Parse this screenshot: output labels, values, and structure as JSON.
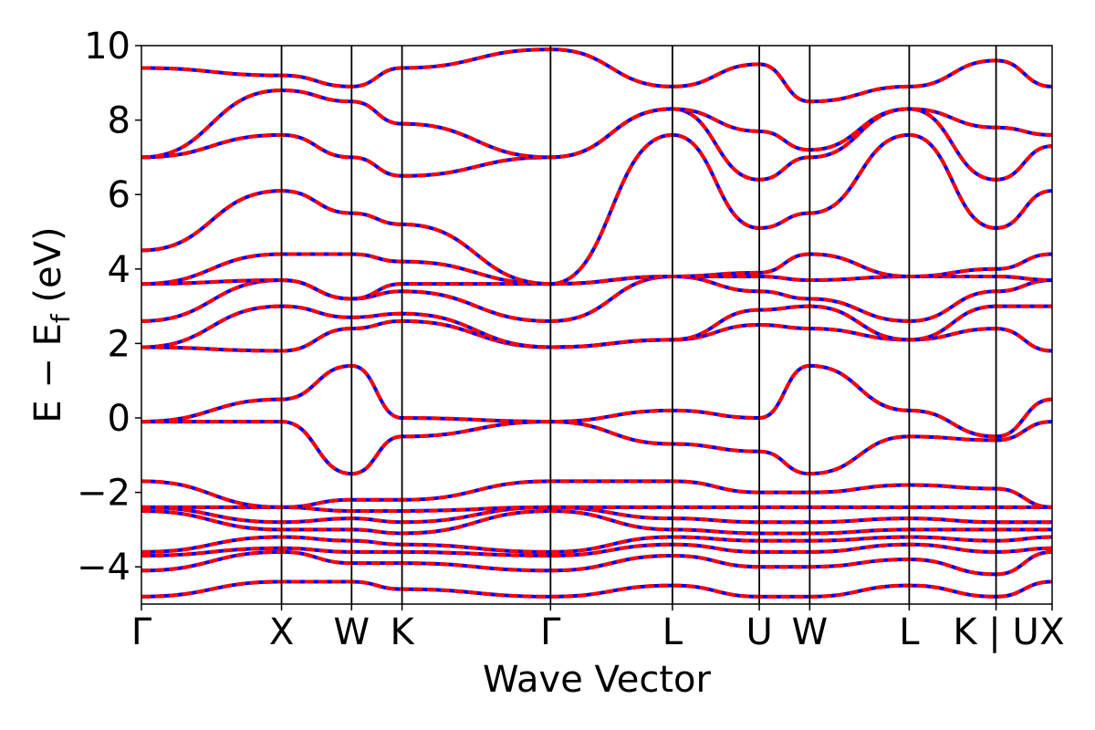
{
  "chart_data": {
    "type": "line",
    "title": "",
    "xlabel": "Wave Vector",
    "ylabel": "E − E_f (eV)",
    "ylabel_main": "E − E",
    "ylabel_sub": "f",
    "ylabel_unit": " (eV)",
    "ylim": [
      -5,
      10
    ],
    "yticks": [
      -4,
      -2,
      0,
      2,
      4,
      6,
      8,
      10
    ],
    "ytick_labels": [
      "−4",
      "−2",
      "0",
      "2",
      "4",
      "6",
      "8",
      "10"
    ],
    "xlim": [
      0,
      6.5
    ],
    "grid": false,
    "legend": "none",
    "high_symmetry_points": [
      {
        "label": "Γ",
        "x": 0.0
      },
      {
        "label": "X",
        "x": 1.0
      },
      {
        "label": "W",
        "x": 1.5
      },
      {
        "label": "K",
        "x": 1.86
      },
      {
        "label": "Γ",
        "x": 2.92
      },
      {
        "label": "L",
        "x": 3.79
      },
      {
        "label": "U",
        "x": 4.41
      },
      {
        "label": "W",
        "x": 4.77
      },
      {
        "label": "L",
        "x": 5.48
      },
      {
        "label": "K | U",
        "x": 6.1
      },
      {
        "label": "X",
        "x": 6.5
      }
    ],
    "band_colors": {
      "dft": "#0000ff",
      "interpolated": "#ff0000"
    },
    "series": [
      {
        "values": [
          [
            0,
            -4.8
          ],
          [
            1,
            -4.4
          ],
          [
            1.5,
            -4.4
          ],
          [
            1.86,
            -4.6
          ],
          [
            2.92,
            -4.8
          ],
          [
            3.79,
            -4.5
          ],
          [
            4.41,
            -4.8
          ],
          [
            4.77,
            -4.8
          ],
          [
            5.48,
            -4.5
          ],
          [
            6.1,
            -4.8
          ],
          [
            6.5,
            -4.4
          ]
        ]
      },
      {
        "values": [
          [
            0,
            -4.1
          ],
          [
            1,
            -3.6
          ],
          [
            1.5,
            -3.9
          ],
          [
            1.86,
            -3.9
          ],
          [
            2.92,
            -4.1
          ],
          [
            3.79,
            -3.7
          ],
          [
            4.41,
            -4.0
          ],
          [
            4.77,
            -4.0
          ],
          [
            5.48,
            -3.8
          ],
          [
            6.1,
            -4.2
          ],
          [
            6.5,
            -3.6
          ]
        ]
      },
      {
        "values": [
          [
            0,
            -3.7
          ],
          [
            1,
            -3.5
          ],
          [
            1.5,
            -3.6
          ],
          [
            1.86,
            -3.6
          ],
          [
            2.92,
            -3.7
          ],
          [
            3.79,
            -3.4
          ],
          [
            4.41,
            -3.6
          ],
          [
            4.77,
            -3.6
          ],
          [
            5.48,
            -3.4
          ],
          [
            6.1,
            -3.6
          ],
          [
            6.5,
            -3.5
          ]
        ]
      },
      {
        "values": [
          [
            0,
            -3.6
          ],
          [
            1,
            -3.2
          ],
          [
            1.5,
            -3.3
          ],
          [
            1.86,
            -3.4
          ],
          [
            2.92,
            -3.6
          ],
          [
            3.79,
            -3.2
          ],
          [
            4.41,
            -3.3
          ],
          [
            4.77,
            -3.3
          ],
          [
            5.48,
            -3.2
          ],
          [
            6.1,
            -3.3
          ],
          [
            6.5,
            -3.2
          ]
        ]
      },
      {
        "values": [
          [
            0,
            -2.5
          ],
          [
            1,
            -3.0
          ],
          [
            1.5,
            -3.0
          ],
          [
            1.86,
            -3.1
          ],
          [
            2.92,
            -2.5
          ],
          [
            3.79,
            -3.0
          ],
          [
            4.41,
            -3.1
          ],
          [
            4.77,
            -3.1
          ],
          [
            5.48,
            -3.0
          ],
          [
            6.1,
            -3.0
          ],
          [
            6.5,
            -3.0
          ]
        ]
      },
      {
        "values": [
          [
            0,
            -2.4
          ],
          [
            1,
            -2.8
          ],
          [
            1.5,
            -2.7
          ],
          [
            1.86,
            -2.8
          ],
          [
            2.92,
            -2.4
          ],
          [
            3.79,
            -2.7
          ],
          [
            4.41,
            -2.8
          ],
          [
            4.77,
            -2.8
          ],
          [
            5.48,
            -2.7
          ],
          [
            6.1,
            -2.8
          ],
          [
            6.5,
            -2.8
          ]
        ]
      },
      {
        "values": [
          [
            0,
            -2.4
          ],
          [
            1,
            -2.4
          ],
          [
            1.5,
            -2.5
          ],
          [
            1.86,
            -2.5
          ],
          [
            2.92,
            -2.4
          ],
          [
            3.79,
            -2.4
          ],
          [
            4.41,
            -2.4
          ],
          [
            4.77,
            -2.4
          ],
          [
            5.48,
            -2.4
          ],
          [
            6.1,
            -2.4
          ],
          [
            6.5,
            -2.4
          ]
        ]
      },
      {
        "values": [
          [
            0,
            -1.7
          ],
          [
            1,
            -2.4
          ],
          [
            1.5,
            -2.2
          ],
          [
            1.86,
            -2.2
          ],
          [
            2.92,
            -1.7
          ],
          [
            3.79,
            -1.7
          ],
          [
            4.41,
            -2.0
          ],
          [
            4.77,
            -2.0
          ],
          [
            5.48,
            -1.8
          ],
          [
            6.1,
            -1.9
          ],
          [
            6.5,
            -2.4
          ]
        ]
      },
      {
        "values": [
          [
            0,
            -0.1
          ],
          [
            1,
            -0.1
          ],
          [
            1.5,
            -1.5
          ],
          [
            1.86,
            -0.5
          ],
          [
            2.92,
            -0.1
          ],
          [
            3.79,
            -0.7
          ],
          [
            4.41,
            -0.9
          ],
          [
            4.77,
            -1.5
          ],
          [
            5.48,
            -0.5
          ],
          [
            6.1,
            -0.6
          ],
          [
            6.5,
            -0.1
          ]
        ]
      },
      {
        "values": [
          [
            0,
            -0.1
          ],
          [
            1,
            0.5
          ],
          [
            1.5,
            1.4
          ],
          [
            1.86,
            0.0
          ],
          [
            2.92,
            -0.1
          ],
          [
            3.79,
            0.2
          ],
          [
            4.41,
            0.0
          ],
          [
            4.77,
            1.4
          ],
          [
            5.48,
            0.2
          ],
          [
            6.1,
            -0.5
          ],
          [
            6.5,
            0.5
          ]
        ]
      },
      {
        "values": [
          [
            0,
            1.9
          ],
          [
            1,
            1.8
          ],
          [
            1.5,
            2.4
          ],
          [
            1.86,
            2.6
          ],
          [
            2.92,
            1.9
          ],
          [
            3.79,
            2.1
          ],
          [
            4.41,
            2.5
          ],
          [
            4.77,
            2.4
          ],
          [
            5.48,
            2.1
          ],
          [
            6.1,
            2.4
          ],
          [
            6.5,
            1.8
          ]
        ]
      },
      {
        "values": [
          [
            0,
            1.9
          ],
          [
            1,
            3.0
          ],
          [
            1.5,
            2.7
          ],
          [
            1.86,
            2.8
          ],
          [
            2.92,
            1.9
          ],
          [
            3.79,
            2.1
          ],
          [
            4.41,
            2.9
          ],
          [
            4.77,
            3.0
          ],
          [
            5.48,
            2.1
          ],
          [
            6.1,
            3.0
          ],
          [
            6.5,
            3.0
          ]
        ]
      },
      {
        "values": [
          [
            0,
            2.6
          ],
          [
            1,
            3.7
          ],
          [
            1.5,
            3.2
          ],
          [
            1.86,
            3.4
          ],
          [
            2.92,
            2.6
          ],
          [
            3.79,
            3.8
          ],
          [
            4.41,
            3.4
          ],
          [
            4.77,
            3.2
          ],
          [
            5.48,
            2.6
          ],
          [
            6.1,
            3.4
          ],
          [
            6.5,
            3.7
          ]
        ]
      },
      {
        "values": [
          [
            0,
            3.6
          ],
          [
            1,
            3.7
          ],
          [
            1.5,
            3.2
          ],
          [
            1.86,
            3.6
          ],
          [
            2.92,
            3.6
          ],
          [
            3.79,
            3.8
          ],
          [
            4.41,
            3.8
          ],
          [
            4.77,
            3.7
          ],
          [
            5.48,
            3.8
          ],
          [
            6.1,
            3.8
          ],
          [
            6.5,
            3.7
          ]
        ]
      },
      {
        "values": [
          [
            0,
            3.6
          ],
          [
            1,
            4.4
          ],
          [
            1.5,
            4.4
          ],
          [
            1.86,
            4.2
          ],
          [
            2.92,
            3.6
          ],
          [
            3.79,
            3.8
          ],
          [
            4.41,
            3.9
          ],
          [
            4.77,
            4.4
          ],
          [
            5.48,
            3.8
          ],
          [
            6.1,
            4.0
          ],
          [
            6.5,
            4.4
          ]
        ]
      },
      {
        "values": [
          [
            0,
            4.5
          ],
          [
            1,
            6.1
          ],
          [
            1.5,
            5.5
          ],
          [
            1.86,
            5.2
          ],
          [
            2.92,
            3.6
          ],
          [
            3.79,
            7.6
          ],
          [
            4.41,
            5.1
          ],
          [
            4.77,
            5.5
          ],
          [
            5.48,
            7.6
          ],
          [
            6.1,
            5.1
          ],
          [
            6.5,
            6.1
          ]
        ]
      },
      {
        "values": [
          [
            0,
            7.0
          ],
          [
            1,
            7.6
          ],
          [
            1.5,
            7.0
          ],
          [
            1.86,
            6.5
          ],
          [
            2.92,
            7.0
          ],
          [
            3.79,
            8.3
          ],
          [
            4.41,
            6.4
          ],
          [
            4.77,
            7.0
          ],
          [
            5.48,
            8.3
          ],
          [
            6.1,
            6.4
          ],
          [
            6.5,
            7.3
          ]
        ]
      },
      {
        "values": [
          [
            0,
            7.0
          ],
          [
            1,
            8.8
          ],
          [
            1.5,
            8.5
          ],
          [
            1.86,
            7.9
          ],
          [
            2.92,
            7.0
          ],
          [
            3.79,
            8.3
          ],
          [
            4.41,
            7.7
          ],
          [
            4.77,
            7.2
          ],
          [
            5.48,
            8.3
          ],
          [
            6.1,
            7.8
          ],
          [
            6.5,
            7.6
          ]
        ]
      },
      {
        "values": [
          [
            0,
            9.4
          ],
          [
            1,
            9.2
          ],
          [
            1.5,
            8.9
          ],
          [
            1.86,
            9.4
          ],
          [
            2.92,
            9.9
          ],
          [
            3.79,
            8.9
          ],
          [
            4.41,
            9.5
          ],
          [
            4.77,
            8.5
          ],
          [
            5.48,
            8.9
          ],
          [
            6.1,
            9.6
          ],
          [
            6.5,
            8.9
          ]
        ]
      }
    ]
  }
}
